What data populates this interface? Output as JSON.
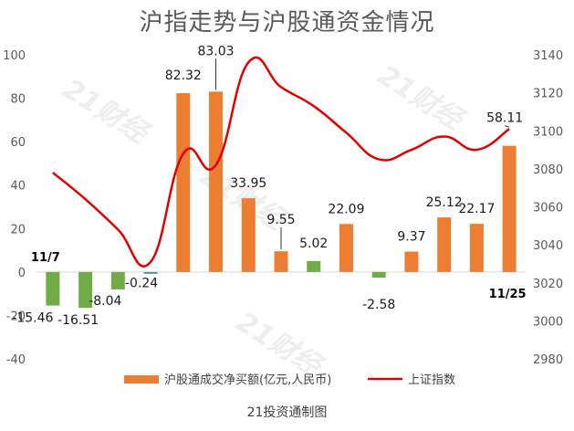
{
  "title": "沪指走势与沪股通资金情况",
  "source": "21投资通制图",
  "watermark": "21财经",
  "chart_data": {
    "type": "bar+line",
    "series": [
      {
        "name": "沪股通成交净买额(亿元,人民币)",
        "type": "bar",
        "axis": "left",
        "values": [
          -15.46,
          -16.51,
          -8.04,
          -0.24,
          82.32,
          83.03,
          33.95,
          9.55,
          5.02,
          22.09,
          -2.58,
          9.37,
          25.12,
          22.17,
          58.11
        ],
        "labels": [
          "-15.46",
          "-16.51",
          "-8.04",
          "-0.24",
          "82.32",
          "83.03",
          "33.95",
          "9.55",
          "5.02",
          "22.09",
          "-2.58",
          "9.37",
          "25.12",
          "22.17",
          "58.11"
        ],
        "color_positive": "#ed7d31",
        "color_negative": "#70ad47",
        "color_small": "#4f9a94"
      },
      {
        "name": "上证指数",
        "type": "line",
        "axis": "right",
        "color": "#e00000",
        "smooth": true,
        "values": [
          3078,
          3064,
          3048,
          3031,
          3088,
          3082,
          3136,
          3123,
          3113,
          3099,
          3085,
          3090,
          3097,
          3090,
          3101
        ]
      }
    ],
    "annotations": [
      {
        "text": "11/7",
        "index": 0
      },
      {
        "text": "11/25",
        "index": 14
      }
    ],
    "y_left": {
      "ticks": [
        100,
        80,
        60,
        40,
        20,
        0,
        -20,
        -40
      ],
      "ylim": [
        -40,
        100
      ]
    },
    "y_right": {
      "ticks": [
        3140,
        3120,
        3100,
        3080,
        3060,
        3040,
        3020,
        3000,
        2980
      ],
      "ylim": [
        2980,
        3140
      ]
    },
    "legend": "bottom",
    "grid": false
  }
}
